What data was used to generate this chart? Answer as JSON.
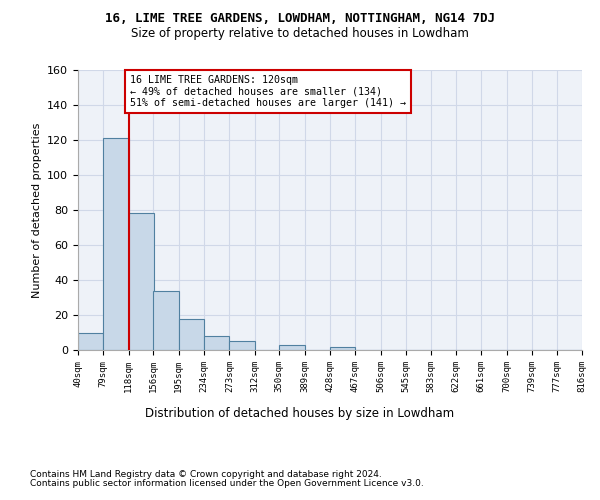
{
  "title1": "16, LIME TREE GARDENS, LOWDHAM, NOTTINGHAM, NG14 7DJ",
  "title2": "Size of property relative to detached houses in Lowdham",
  "xlabel": "Distribution of detached houses by size in Lowdham",
  "ylabel": "Number of detached properties",
  "footnote1": "Contains HM Land Registry data © Crown copyright and database right 2024.",
  "footnote2": "Contains public sector information licensed under the Open Government Licence v3.0.",
  "bar_left_edges": [
    40,
    79,
    118,
    156,
    195,
    234,
    273,
    312,
    350,
    389,
    428,
    467,
    506,
    545,
    583,
    622,
    661,
    700,
    739,
    777
  ],
  "bar_heights": [
    10,
    121,
    78,
    34,
    18,
    8,
    5,
    0,
    3,
    0,
    2,
    0,
    0,
    0,
    0,
    0,
    0,
    0,
    0,
    0
  ],
  "bin_width": 39,
  "tick_labels": [
    "40sqm",
    "79sqm",
    "118sqm",
    "156sqm",
    "195sqm",
    "234sqm",
    "273sqm",
    "312sqm",
    "350sqm",
    "389sqm",
    "428sqm",
    "467sqm",
    "506sqm",
    "545sqm",
    "583sqm",
    "622sqm",
    "661sqm",
    "700sqm",
    "739sqm",
    "777sqm",
    "816sqm"
  ],
  "bar_color": "#c8d8e8",
  "bar_edge_color": "#5080a0",
  "grid_color": "#d0d8e8",
  "bg_color": "#eef2f8",
  "vline_x": 118,
  "vline_color": "#cc0000",
  "annotation_text": "16 LIME TREE GARDENS: 120sqm\n← 49% of detached houses are smaller (134)\n51% of semi-detached houses are larger (141) →",
  "annotation_box_color": "#ffffff",
  "annotation_box_edge": "#cc0000",
  "ylim": [
    0,
    160
  ],
  "yticks": [
    0,
    20,
    40,
    60,
    80,
    100,
    120,
    140,
    160
  ]
}
